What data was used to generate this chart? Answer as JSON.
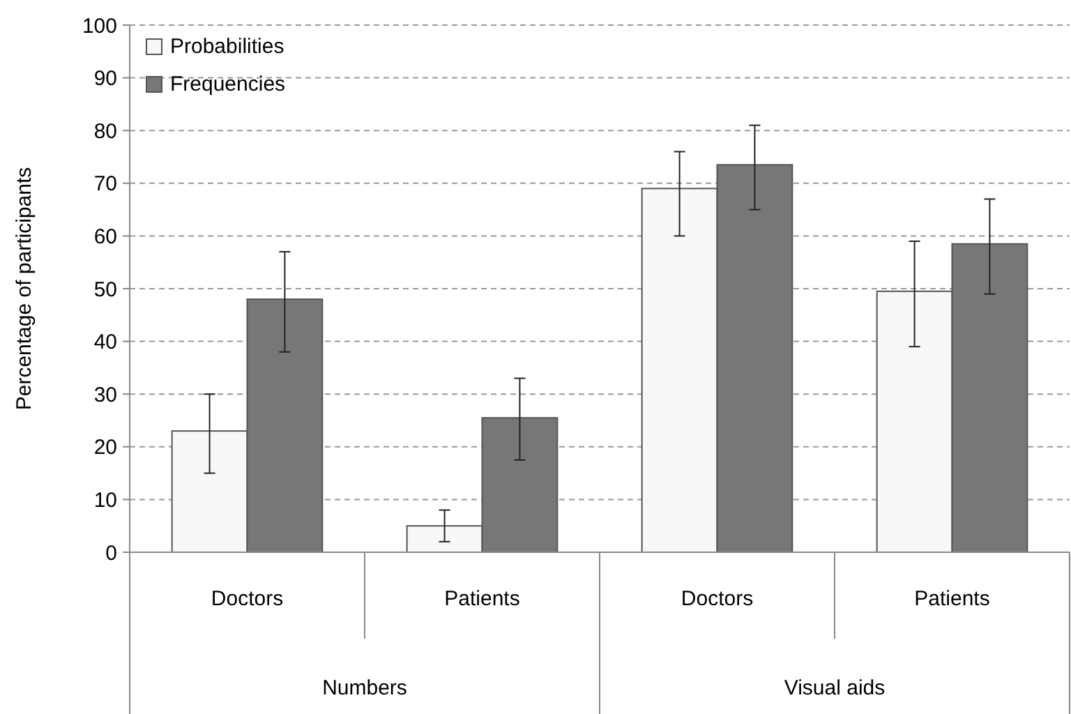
{
  "chart_data": {
    "type": "bar",
    "ylabel": "Percentage of participants",
    "categories": [
      "Doctors",
      "Patients",
      "Doctors",
      "Patients"
    ],
    "series": [
      {
        "name": "Probabilities",
        "color": "#f8f8f8",
        "values": [
          23,
          5,
          69,
          49.5
        ],
        "errors": [
          [
            15,
            30
          ],
          [
            2,
            8
          ],
          [
            60,
            76
          ],
          [
            39,
            59
          ]
        ]
      },
      {
        "name": "Frequencies",
        "color": "#777777",
        "values": [
          48,
          25.5,
          73.5,
          58.5
        ],
        "errors": [
          [
            38,
            57
          ],
          [
            17.5,
            33
          ],
          [
            65,
            81
          ],
          [
            49,
            67
          ]
        ]
      }
    ],
    "annotations": [
      "Numbers",
      "Visual aids"
    ],
    "ylim": [
      0,
      100
    ],
    "yticks": [
      0,
      10,
      20,
      30,
      40,
      50,
      60,
      70,
      80,
      90,
      100
    ],
    "grid": "y",
    "legend": "top left"
  }
}
